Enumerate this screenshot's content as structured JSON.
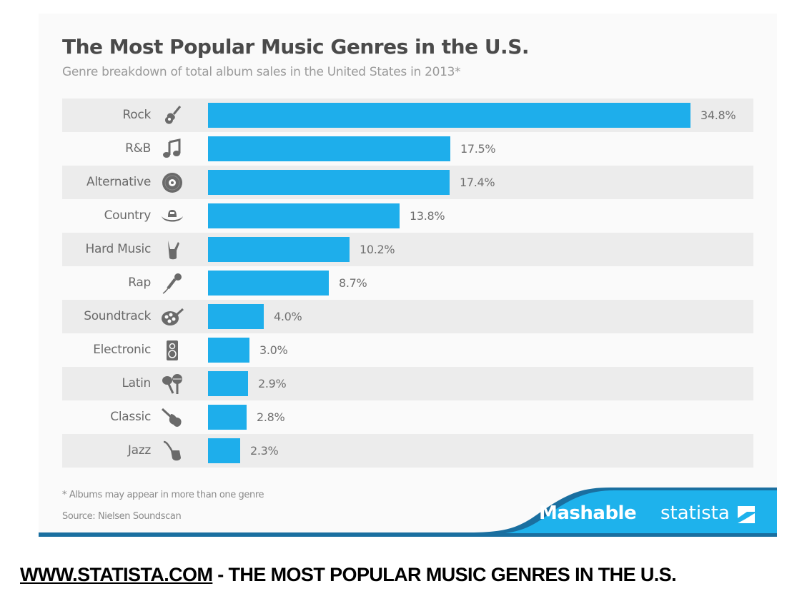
{
  "chart": {
    "title": "The Most Popular Music Genres in the U.S.",
    "subtitle": "Genre breakdown of total album sales in the United States in 2013*",
    "footnote": "* Albums may appear in more than one genre",
    "source": "Source: Nielsen Soundscan",
    "brands": {
      "mashable": "Mashable",
      "statista": "statista"
    },
    "rows": [
      {
        "label": "Rock",
        "value_label": "34.8%",
        "icon": "electric-guitar-icon"
      },
      {
        "label": "R&B",
        "value_label": "17.5%",
        "icon": "music-note-icon"
      },
      {
        "label": "Alternative",
        "value_label": "17.4%",
        "icon": "vinyl-record-icon"
      },
      {
        "label": "Country",
        "value_label": "13.8%",
        "icon": "cowboy-hat-icon"
      },
      {
        "label": "Hard Music",
        "value_label": "10.2%",
        "icon": "rock-hand-icon"
      },
      {
        "label": "Rap",
        "value_label": "8.7%",
        "icon": "microphone-icon"
      },
      {
        "label": "Soundtrack",
        "value_label": "4.0%",
        "icon": "film-reel-icon"
      },
      {
        "label": "Electronic",
        "value_label": "3.0%",
        "icon": "speaker-icon"
      },
      {
        "label": "Latin",
        "value_label": "2.9%",
        "icon": "maracas-icon"
      },
      {
        "label": "Classic",
        "value_label": "2.8%",
        "icon": "violin-icon"
      },
      {
        "label": "Jazz",
        "value_label": "2.3%",
        "icon": "saxophone-icon"
      }
    ],
    "colors": {
      "bar": "#1eaeeb",
      "stripe": "#ececec",
      "background": "#fafafa",
      "wave_dark": "#1a6fa0"
    }
  },
  "caption": {
    "link": "WWW.STATISTA.COM",
    "text": " - THE MOST POPULAR MUSIC GENRES IN THE U.S."
  },
  "chart_data": {
    "type": "bar",
    "orientation": "horizontal",
    "title": "The Most Popular Music Genres in the U.S.",
    "subtitle": "Genre breakdown of total album sales in the United States in 2013*",
    "categories": [
      "Rock",
      "R&B",
      "Alternative",
      "Country",
      "Hard Music",
      "Rap",
      "Soundtrack",
      "Electronic",
      "Latin",
      "Classic",
      "Jazz"
    ],
    "values": [
      34.8,
      17.5,
      17.4,
      13.8,
      10.2,
      8.7,
      4.0,
      3.0,
      2.9,
      2.8,
      2.3
    ],
    "unit": "%",
    "xlabel": "",
    "ylabel": "",
    "xlim": [
      0,
      40
    ],
    "grid": false,
    "legend": null,
    "data_labels": true,
    "annotations": [
      "* Albums may appear in more than one genre",
      "Source: Nielsen Soundscan"
    ]
  }
}
